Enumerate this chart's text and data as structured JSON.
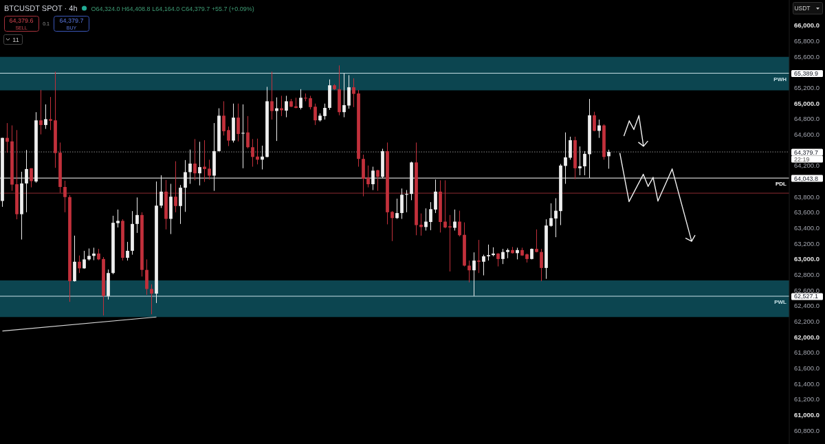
{
  "chart_data": {
    "type": "candlestick",
    "title": "BTCUSDT SPOT · 4h",
    "subtitle": "O64,324.0 H64,408.8 L64,164.0 C64,379.7 +55.7 (+0.09%)",
    "categories": [
      null,
      null,
      null,
      null,
      null,
      null,
      null,
      null,
      null,
      null,
      null,
      null,
      null,
      null,
      null,
      null,
      null,
      null,
      null,
      null,
      null,
      null,
      null,
      null,
      null,
      null,
      null,
      null,
      null,
      null,
      null,
      null,
      null,
      null,
      null,
      null,
      null,
      null,
      null,
      null,
      null,
      null,
      null,
      null,
      null,
      null,
      null,
      null,
      null,
      null,
      null,
      null,
      null,
      null,
      null,
      null,
      null,
      null,
      null,
      null,
      null,
      null,
      null,
      null,
      null,
      null,
      null,
      null,
      null,
      null,
      null,
      null,
      null,
      null,
      null,
      null,
      null,
      null,
      null,
      null,
      null,
      null,
      null,
      null,
      null,
      null,
      null,
      null,
      null,
      null,
      null,
      null,
      null,
      null,
      null,
      null,
      null,
      null,
      null,
      null,
      null,
      null,
      null,
      null,
      null,
      null,
      null,
      null,
      null,
      null,
      null,
      null,
      null,
      null,
      null,
      null,
      null,
      null,
      null,
      null,
      null,
      null,
      null,
      null,
      null,
      null,
      null,
      null,
      null,
      null,
      null,
      null,
      null,
      null,
      null,
      null,
      null,
      null,
      null,
      null,
      null,
      null,
      null,
      null,
      null,
      null,
      null,
      null,
      null,
      null,
      null,
      null,
      null,
      null,
      null,
      null,
      null,
      null,
      null,
      null,
      null,
      null,
      null,
      null
    ],
    "ohlc": [
      [
        63750,
        64560,
        63675,
        64560
      ],
      [
        64560,
        64750,
        64370,
        64510
      ],
      [
        64515,
        64720,
        63880,
        63960
      ],
      [
        63965,
        64660,
        63515,
        63580
      ],
      [
        63580,
        64125,
        63255,
        63975
      ],
      [
        63975,
        64405,
        63605,
        64160
      ],
      [
        64170,
        64170,
        63925,
        64005
      ],
      [
        64000,
        64890,
        63985,
        64785
      ],
      [
        64785,
        65175,
        64605,
        64725
      ],
      [
        64725,
        64990,
        64675,
        64800
      ],
      [
        64800,
        65085,
        64660,
        64780
      ],
      [
        64785,
        65410,
        64175,
        64365
      ],
      [
        64370,
        64500,
        63855,
        63930
      ],
      [
        63930,
        64010,
        63605,
        63800
      ],
      [
        63800,
        63825,
        62455,
        62720
      ],
      [
        62720,
        63305,
        62715,
        62970
      ],
      [
        62970,
        63050,
        62825,
        62885
      ],
      [
        62885,
        63110,
        62880,
        63000
      ],
      [
        63000,
        63140,
        62985,
        63045
      ],
      [
        63045,
        63150,
        62990,
        63075
      ],
      [
        63075,
        63135,
        62990,
        63000
      ],
      [
        63005,
        63030,
        62280,
        62530
      ],
      [
        62530,
        62870,
        62485,
        62825
      ],
      [
        62825,
        63560,
        62810,
        63470
      ],
      [
        63465,
        63640,
        63410,
        63495
      ],
      [
        63495,
        63515,
        62985,
        63020
      ],
      [
        63020,
        63225,
        62985,
        63110
      ],
      [
        63110,
        63620,
        63060,
        63455
      ],
      [
        63455,
        63795,
        63340,
        63570
      ],
      [
        63570,
        63605,
        62780,
        62865
      ],
      [
        62865,
        63000,
        62545,
        62620
      ],
      [
        62620,
        62680,
        62295,
        62560
      ],
      [
        62560,
        64000,
        62440,
        63690
      ],
      [
        63690,
        64080,
        63660,
        63870
      ],
      [
        63870,
        64020,
        63385,
        63520
      ],
      [
        63520,
        63970,
        63325,
        63805
      ],
      [
        63805,
        64260,
        63605,
        63685
      ],
      [
        63685,
        63955,
        63455,
        63920
      ],
      [
        63920,
        64275,
        63610,
        64120
      ],
      [
        64120,
        64410,
        63970,
        64230
      ],
      [
        64230,
        64545,
        64015,
        64105
      ],
      [
        64105,
        64510,
        63950,
        64185
      ],
      [
        64190,
        64530,
        63995,
        64160
      ],
      [
        64165,
        64280,
        64025,
        64075
      ],
      [
        64075,
        64750,
        63880,
        64390
      ],
      [
        64390,
        64940,
        64385,
        64845
      ],
      [
        64845,
        65030,
        64590,
        64645
      ],
      [
        64660,
        64705,
        64455,
        64525
      ],
      [
        64525,
        65000,
        64500,
        64820
      ],
      [
        64820,
        65000,
        64515,
        64610
      ],
      [
        64615,
        64990,
        64170,
        64625
      ],
      [
        64630,
        64840,
        64425,
        64440
      ],
      [
        64440,
        64545,
        64190,
        64315
      ],
      [
        64320,
        64550,
        64220,
        64280
      ],
      [
        64280,
        64460,
        64155,
        64320
      ],
      [
        64315,
        65215,
        64310,
        65030
      ],
      [
        65030,
        65410,
        64795,
        64905
      ],
      [
        64905,
        65080,
        64520,
        64940
      ],
      [
        64940,
        65100,
        64840,
        64915
      ],
      [
        64910,
        65100,
        64825,
        65030
      ],
      [
        65030,
        65060,
        64955,
        64960
      ],
      [
        64965,
        65075,
        64940,
        64945
      ],
      [
        64945,
        65185,
        64925,
        65075
      ],
      [
        65075,
        65130,
        65030,
        65065
      ],
      [
        65070,
        65100,
        64925,
        64955
      ],
      [
        64960,
        65000,
        64725,
        64785
      ],
      [
        64785,
        64875,
        64770,
        64845
      ],
      [
        64840,
        65000,
        64795,
        64945
      ],
      [
        64945,
        65310,
        64920,
        65235
      ],
      [
        65235,
        65250,
        65175,
        65185
      ],
      [
        65185,
        65490,
        64850,
        64890
      ],
      [
        64890,
        65390,
        64825,
        64980
      ],
      [
        64975,
        65365,
        64935,
        65210
      ],
      [
        65210,
        65325,
        64955,
        65125
      ],
      [
        65130,
        65175,
        64190,
        64290
      ],
      [
        64290,
        64345,
        63810,
        64035
      ],
      [
        64050,
        64205,
        63925,
        63965
      ],
      [
        63965,
        64190,
        63890,
        64140
      ],
      [
        64145,
        64150,
        63880,
        64060
      ],
      [
        64060,
        64420,
        64045,
        64390
      ],
      [
        64390,
        64500,
        63450,
        63605
      ],
      [
        63610,
        63620,
        63235,
        63530
      ],
      [
        63530,
        63780,
        63520,
        63595
      ],
      [
        63595,
        63910,
        63520,
        63830
      ],
      [
        63830,
        63890,
        63605,
        63840
      ],
      [
        63840,
        64255,
        63760,
        64245
      ],
      [
        64245,
        64500,
        63310,
        63440
      ],
      [
        63445,
        63590,
        63305,
        63415
      ],
      [
        63415,
        63655,
        63370,
        63485
      ],
      [
        63480,
        63735,
        63375,
        63645
      ],
      [
        63640,
        64025,
        63595,
        63870
      ],
      [
        63870,
        64015,
        63345,
        63480
      ],
      [
        63485,
        64015,
        63400,
        63410
      ],
      [
        63425,
        63570,
        62845,
        63410
      ],
      [
        63405,
        63640,
        63370,
        63485
      ],
      [
        63485,
        63625,
        63295,
        63310
      ],
      [
        63315,
        63475,
        62910,
        62920
      ],
      [
        62920,
        62985,
        62705,
        62860
      ],
      [
        62860,
        63090,
        62530,
        62985
      ],
      [
        62985,
        63250,
        62825,
        62970
      ],
      [
        62970,
        63060,
        62795,
        63040
      ],
      [
        63040,
        63190,
        62985,
        63055
      ],
      [
        63055,
        63155,
        63040,
        63075
      ],
      [
        63075,
        63080,
        62910,
        63005
      ],
      [
        63005,
        63135,
        62940,
        63095
      ],
      [
        63095,
        63140,
        63015,
        63120
      ],
      [
        63120,
        63160,
        63075,
        63080
      ],
      [
        63080,
        63150,
        63000,
        63120
      ],
      [
        63120,
        63150,
        63045,
        63050
      ],
      [
        63065,
        63075,
        62960,
        63005
      ],
      [
        63005,
        63140,
        63000,
        63135
      ],
      [
        63135,
        63385,
        63090,
        63095
      ],
      [
        63095,
        63135,
        62720,
        62890
      ],
      [
        62890,
        63515,
        62750,
        63435
      ],
      [
        63430,
        63720,
        63420,
        63530
      ],
      [
        63525,
        63785,
        63285,
        63625
      ],
      [
        63620,
        64225,
        63440,
        64205
      ],
      [
        64200,
        64630,
        63970,
        64310
      ],
      [
        64305,
        64575,
        64280,
        64530
      ],
      [
        64530,
        64575,
        64030,
        64170
      ],
      [
        64170,
        64450,
        64080,
        64195
      ],
      [
        64195,
        64390,
        64080,
        64355
      ],
      [
        64350,
        65060,
        64045,
        64850
      ],
      [
        64850,
        64895,
        64645,
        64650
      ],
      [
        64650,
        64795,
        64560,
        64720
      ],
      [
        64720,
        64735,
        64280,
        64315
      ],
      [
        64324.0,
        64408.8,
        64164.0,
        64379.7
      ],
      null,
      null,
      null,
      null,
      null,
      null,
      null,
      null,
      null,
      null,
      null,
      null,
      null,
      null,
      null,
      null,
      null,
      null,
      null,
      null,
      null,
      null,
      null,
      null,
      null,
      null,
      null,
      null,
      null,
      null,
      null,
      null,
      null,
      null,
      null,
      null,
      null
    ],
    "colors": [
      "#eeeeee",
      "#c2303b",
      "#c2303b",
      "#c2303b",
      "#eeeeee",
      "#eeeeee",
      "#c2303b",
      "#eeeeee",
      "#c2303b",
      "#eeeeee",
      "#c2303b",
      "#c2303b",
      "#c2303b",
      "#c2303b",
      "#c2303b",
      "#eeeeee",
      "#c2303b",
      "#eeeeee",
      "#eeeeee",
      "#eeeeee",
      "#c2303b",
      "#c2303b",
      "#eeeeee",
      "#eeeeee",
      "#eeeeee",
      "#c2303b",
      "#eeeeee",
      "#eeeeee",
      "#eeeeee",
      "#c2303b",
      "#c2303b",
      "#c2303b",
      "#eeeeee",
      "#eeeeee",
      "#c2303b",
      "#eeeeee",
      "#c2303b",
      "#eeeeee",
      "#eeeeee",
      "#eeeeee",
      "#c2303b",
      "#eeeeee",
      "#c2303b",
      "#c2303b",
      "#eeeeee",
      "#eeeeee",
      "#c2303b",
      "#c2303b",
      "#eeeeee",
      "#c2303b",
      "#eeeeee",
      "#c2303b",
      "#c2303b",
      "#c2303b",
      "#eeeeee",
      "#eeeeee",
      "#c2303b",
      "#eeeeee",
      "#c2303b",
      "#eeeeee",
      "#c2303b",
      "#c2303b",
      "#eeeeee",
      "#c2303b",
      "#c2303b",
      "#c2303b",
      "#eeeeee",
      "#eeeeee",
      "#eeeeee",
      "#c2303b",
      "#c2303b",
      "#eeeeee",
      "#eeeeee",
      "#c2303b",
      "#c2303b",
      "#c2303b",
      "#c2303b",
      "#eeeeee",
      "#c2303b",
      "#eeeeee",
      "#c2303b",
      "#c2303b",
      "#eeeeee",
      "#eeeeee",
      "#eeeeee",
      "#eeeeee",
      "#c2303b",
      "#c2303b",
      "#eeeeee",
      "#eeeeee",
      "#eeeeee",
      "#c2303b",
      "#c2303b",
      "#c2303b",
      "#eeeeee",
      "#c2303b",
      "#c2303b",
      "#c2303b",
      "#eeeeee",
      "#c2303b",
      "#eeeeee",
      "#eeeeee",
      "#eeeeee",
      "#c2303b",
      "#eeeeee",
      "#eeeeee",
      "#c2303b",
      "#eeeeee",
      "#c2303b",
      "#c2303b",
      "#eeeeee",
      "#c2303b",
      "#c2303b",
      "#eeeeee",
      "#eeeeee",
      "#eeeeee",
      "#eeeeee",
      "#eeeeee",
      "#eeeeee",
      "#c2303b",
      "#eeeeee",
      "#eeeeee",
      "#eeeeee",
      "#c2303b",
      "#eeeeee",
      "#c2303b",
      "#eeeeee",
      null,
      null,
      null,
      null,
      null,
      null,
      null,
      null,
      null,
      null,
      null,
      null,
      null,
      null,
      null,
      null,
      null,
      null,
      null,
      null,
      null,
      null,
      null,
      null,
      null,
      null,
      null,
      null,
      null,
      null,
      null,
      null,
      null,
      null,
      null,
      null,
      null
    ],
    "series": [
      {
        "type": "line",
        "color": "#d8d8d8",
        "values": [
          62080,
          null,
          null,
          null,
          null,
          null,
          null,
          null,
          null,
          null,
          null,
          null,
          null,
          null,
          null,
          null,
          null,
          null,
          null,
          null,
          null,
          null,
          null,
          null,
          null,
          null,
          null,
          null,
          null,
          null,
          null,
          null,
          62260,
          null,
          null,
          null,
          null,
          null,
          null,
          null,
          null,
          null,
          null,
          null,
          null,
          null,
          null,
          null,
          null,
          null,
          null,
          null,
          null,
          null,
          null,
          null,
          null,
          null,
          null,
          null,
          null,
          null,
          null,
          null,
          null,
          null,
          null,
          null,
          null,
          null,
          null,
          null,
          null,
          null,
          null,
          null,
          null,
          null,
          null,
          null,
          null,
          null,
          null,
          null,
          null,
          null,
          null,
          null,
          null,
          null,
          null,
          null,
          null,
          null,
          null,
          null,
          null,
          null,
          null,
          null,
          null,
          null,
          null,
          null,
          null,
          null,
          null,
          null,
          null,
          null,
          null,
          null,
          null,
          null,
          null,
          null,
          null,
          null,
          null,
          null,
          null,
          null,
          null,
          null,
          null,
          null,
          null,
          null,
          null,
          null,
          null,
          null,
          null,
          null,
          null,
          null,
          null,
          null,
          null,
          null,
          null,
          null,
          null,
          null,
          null,
          null,
          null,
          null,
          null,
          null,
          null,
          null,
          null,
          null,
          null,
          null,
          null,
          null,
          null,
          null,
          null,
          null,
          null,
          null
        ]
      }
    ],
    "ylim": [
      60630,
      66330
    ],
    "yticks": [
      {
        "value": 60800,
        "label": "60,800.0"
      },
      {
        "value": 61000,
        "label": "61,000.0"
      },
      {
        "value": 61200,
        "label": "61,200.0"
      },
      {
        "value": 61400,
        "label": "61,400.0"
      },
      {
        "value": 61600,
        "label": "61,600.0"
      },
      {
        "value": 61800,
        "label": "61,800.0"
      },
      {
        "value": 62000,
        "label": "62,000.0"
      },
      {
        "value": 62200,
        "label": "62,200.0"
      },
      {
        "value": 62400,
        "label": "62,400.0"
      },
      {
        "value": 62527.1,
        "label": "62,527.1"
      },
      {
        "value": 62600,
        "label": "62,600.0"
      },
      {
        "value": 62800,
        "label": "62,800.0"
      },
      {
        "value": 63000,
        "label": "63,000.0"
      },
      {
        "value": 63200,
        "label": "63,200.0"
      },
      {
        "value": 63400,
        "label": "63,400.0"
      },
      {
        "value": 63600,
        "label": "63,600.0"
      },
      {
        "value": 63800,
        "label": "63,800.0"
      },
      {
        "value": 64043.8,
        "label": "64,043.8"
      },
      {
        "value": 64200,
        "label": "64,200.0"
      },
      {
        "value": 64379.7,
        "label": "64,379.7"
      },
      {
        "value": 64600,
        "label": "64,600.0"
      },
      {
        "value": 64800,
        "label": "64,800.0"
      },
      {
        "value": 65000,
        "label": "65,000.0"
      },
      {
        "value": 65200,
        "label": "65,200.0"
      },
      {
        "value": 65389.9,
        "label": "65,389.9"
      },
      {
        "value": 65600,
        "label": "65,600.0"
      },
      {
        "value": 65800,
        "label": "65,800.0"
      },
      {
        "value": 66000,
        "label": "66,000.0"
      }
    ],
    "tick_labels": "y",
    "bands": [
      {
        "axis": "y",
        "from": 65170,
        "to": 65600,
        "color": "#0c4550"
      },
      {
        "axis": "y",
        "from": 62260,
        "to": 62730,
        "color": "#0c4550"
      }
    ],
    "ref_lines": [
      {
        "axis": "y",
        "value": 65389.9,
        "label": "PWH",
        "color": "#c9e2e7"
      },
      {
        "axis": "y",
        "value": 64379.7,
        "color": "#8a8a8a",
        "line_style": "dotted"
      },
      {
        "axis": "y",
        "value": 64043.8,
        "label": "PDL",
        "color": "#ffffff"
      },
      {
        "axis": "y",
        "value": 63850,
        "color": "#8e2b33"
      },
      {
        "axis": "y",
        "value": 62527.1,
        "label": "PWL",
        "color": "#c9e2e7"
      }
    ],
    "annotations": [
      "64,379.6",
      "SELL",
      "0.1",
      "64,379.7",
      "BUY",
      "11",
      "USDT",
      "22:19"
    ]
  }
}
